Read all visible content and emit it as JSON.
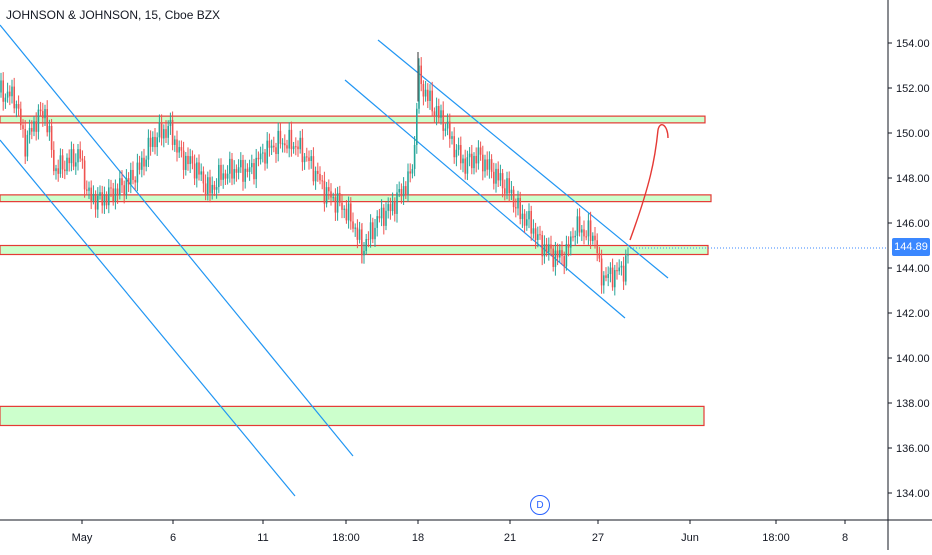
{
  "header": {
    "symbol_title": "JOHNSON & JOHNSON, 15, Cboe BZX"
  },
  "price_label": "144.89",
  "d_marker": "D",
  "colors": {
    "up": "#26a69a",
    "down": "#ef5350",
    "channel": "#2196f3",
    "zone_fill": "#ccffcc",
    "zone_border": "#e53935",
    "projection": "#e53935",
    "price_line": "#3a87ff"
  },
  "chart_data": {
    "type": "candlestick",
    "title": "JOHNSON & JOHNSON, 15, Cboe BZX",
    "ylim": [
      133,
      155.5
    ],
    "y_ticks": [
      "154.00",
      "152.00",
      "150.00",
      "148.00",
      "146.00",
      "144.00",
      "142.00",
      "140.00",
      "138.00",
      "136.00",
      "134.00"
    ],
    "x_ticks": [
      "May",
      "6",
      "11",
      "18:00",
      "18",
      "21",
      "27",
      "Jun",
      "18:00",
      "8"
    ],
    "last_price": 144.89,
    "zones": [
      {
        "low": 150.45,
        "high": 150.75,
        "style": "green"
      },
      {
        "low": 146.95,
        "high": 147.25,
        "style": "green"
      },
      {
        "low": 144.6,
        "high": 145.0,
        "style": "green"
      },
      {
        "low": 137.0,
        "high": 137.85,
        "style": "green"
      }
    ],
    "annotations": [
      "channel lines",
      "projected path to 150.4"
    ]
  }
}
